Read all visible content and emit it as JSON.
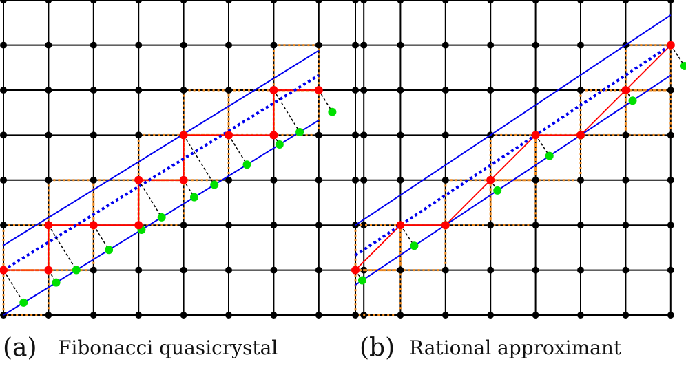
{
  "panels": [
    {
      "id": "a",
      "label": "(a)",
      "caption": "Fibonacci quasicrystal",
      "grid_cols": 8,
      "grid_rows": 8,
      "slope": 0.618,
      "upper_line": [
        [
          0,
          1.55
        ],
        [
          7,
          5.88
        ]
      ],
      "dotted_line": [
        [
          0,
          1
        ],
        [
          7,
          5.33
        ]
      ],
      "lower_line": [
        [
          0,
          0
        ],
        [
          7,
          4.33
        ]
      ],
      "projected_points": [
        [
          0,
          1
        ],
        [
          1,
          1
        ],
        [
          1,
          2
        ],
        [
          2,
          2
        ],
        [
          3,
          2
        ],
        [
          3,
          3
        ],
        [
          4,
          3
        ],
        [
          4,
          4
        ],
        [
          5,
          4
        ],
        [
          6,
          4
        ],
        [
          6,
          5
        ],
        [
          7,
          5
        ]
      ],
      "window_cells": [
        [
          0,
          0
        ],
        [
          0,
          1
        ],
        [
          1,
          1
        ],
        [
          1,
          2
        ],
        [
          2,
          2
        ],
        [
          3,
          2
        ],
        [
          3,
          3
        ],
        [
          4,
          3
        ],
        [
          4,
          4
        ],
        [
          5,
          4
        ],
        [
          6,
          4
        ],
        [
          6,
          5
        ]
      ]
    },
    {
      "id": "b",
      "label": "(b)",
      "caption": "Rational approximant",
      "grid_cols": 7,
      "grid_rows": 7,
      "slope": 0.6667,
      "upper_line": [
        [
          0,
          2
        ],
        [
          7,
          6.67
        ]
      ],
      "dotted_line": [
        [
          0,
          1.33
        ],
        [
          7,
          6
        ]
      ],
      "lower_line": [
        [
          0,
          0.67
        ],
        [
          7,
          5.33
        ]
      ],
      "projected_points": [
        [
          0,
          1
        ],
        [
          1,
          2
        ],
        [
          2,
          2
        ],
        [
          3,
          3
        ],
        [
          4,
          4
        ],
        [
          5,
          4
        ],
        [
          6,
          5
        ],
        [
          7,
          6
        ]
      ],
      "window_cells": [
        [
          0,
          0
        ],
        [
          0,
          1
        ],
        [
          1,
          1
        ],
        [
          2,
          2
        ],
        [
          3,
          2
        ],
        [
          3,
          3
        ],
        [
          4,
          3
        ],
        [
          5,
          4
        ],
        [
          6,
          4
        ],
        [
          6,
          5
        ]
      ]
    }
  ],
  "colors": {
    "lattice": "#000000",
    "projected_point": "#ff0000",
    "projected_edge": "#ff0000",
    "window_box": "#f08a1e",
    "line": "#0000ee",
    "green_point": "#00e000",
    "projection_link": "#000000"
  }
}
